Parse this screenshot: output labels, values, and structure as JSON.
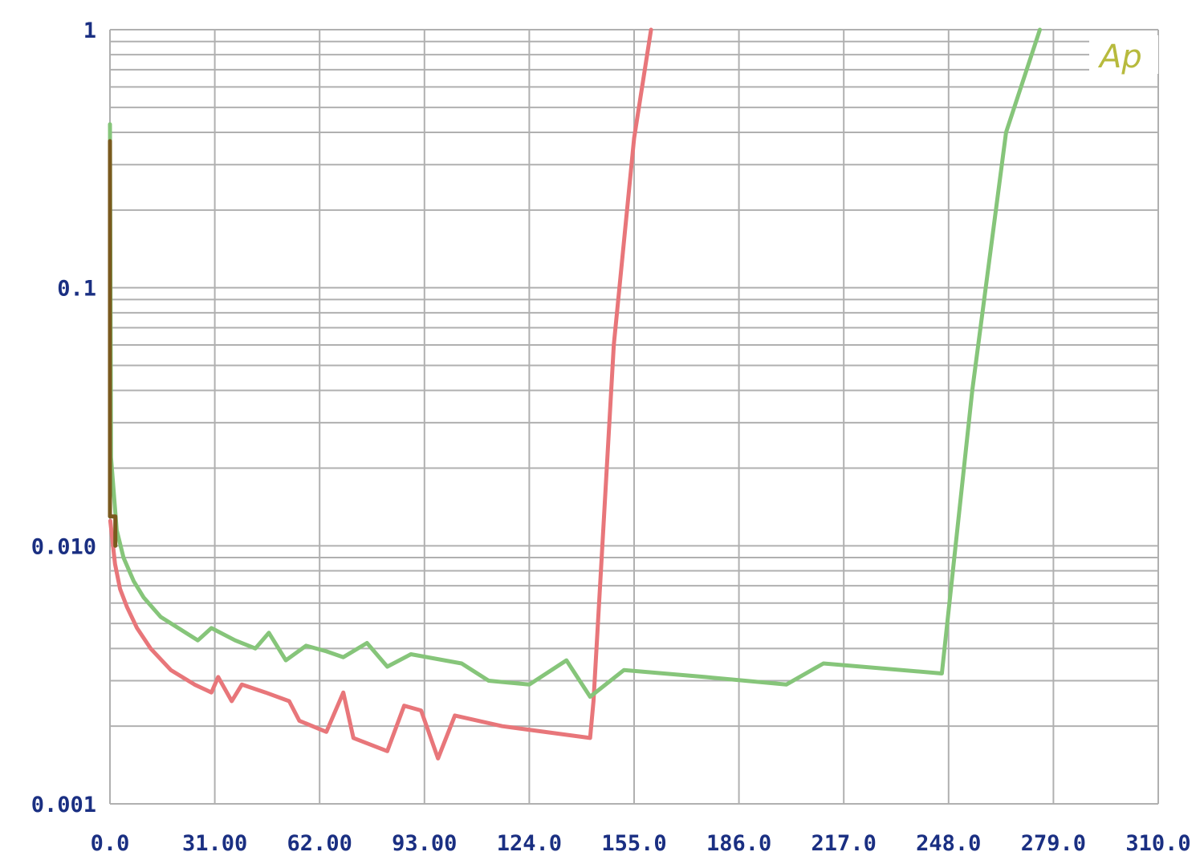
{
  "logo": {
    "text": "Ap"
  },
  "chart_data": {
    "type": "line",
    "title": "",
    "xlabel": "",
    "ylabel": "",
    "xlim": [
      0,
      310
    ],
    "ylim": [
      0.001,
      1
    ],
    "y_scale": "log",
    "grid": true,
    "x_ticks": [
      "0.0",
      "31.00",
      "62.00",
      "93.00",
      "124.0",
      "155.0",
      "186.0",
      "217.0",
      "248.0",
      "279.0",
      "310.0"
    ],
    "y_ticks": [
      {
        "value": 1,
        "label": "1"
      },
      {
        "value": 0.1,
        "label": "0.1"
      },
      {
        "value": 0.01,
        "label": "0.010"
      },
      {
        "value": 0.001,
        "label": "0.001"
      }
    ],
    "colors": {
      "red_series": "#e8767a",
      "green_series": "#86c57a",
      "dark_series": "#7a5a1e",
      "grid": "#b0b0b0",
      "axis_text": "#1a2f82",
      "logo": "#b7ba3d"
    },
    "series": [
      {
        "color": "#e8767a",
        "points": [
          [
            0.1,
            0.0125
          ],
          [
            1.5,
            0.0085
          ],
          [
            3,
            0.0068
          ],
          [
            5,
            0.0058
          ],
          [
            8,
            0.0048
          ],
          [
            12,
            0.004
          ],
          [
            18,
            0.0033
          ],
          [
            25,
            0.0029
          ],
          [
            30,
            0.0027
          ],
          [
            32,
            0.0031
          ],
          [
            36,
            0.0025
          ],
          [
            39,
            0.0029
          ],
          [
            46,
            0.0027
          ],
          [
            53,
            0.0025
          ],
          [
            56,
            0.0021
          ],
          [
            64,
            0.0019
          ],
          [
            69,
            0.0027
          ],
          [
            72,
            0.0018
          ],
          [
            82,
            0.0016
          ],
          [
            87,
            0.0024
          ],
          [
            92,
            0.0023
          ],
          [
            97,
            0.0015
          ],
          [
            102,
            0.0022
          ],
          [
            116,
            0.002
          ],
          [
            142,
            0.0018
          ],
          [
            143,
            0.0025
          ],
          [
            149,
            0.06
          ],
          [
            155,
            0.38
          ],
          [
            160,
            1.0
          ]
        ]
      },
      {
        "color": "#86c57a",
        "points": [
          [
            0,
            0.43
          ],
          [
            0.3,
            0.022
          ],
          [
            2,
            0.0115
          ],
          [
            4,
            0.009
          ],
          [
            7,
            0.0073
          ],
          [
            10,
            0.0063
          ],
          [
            15,
            0.0053
          ],
          [
            26,
            0.0043
          ],
          [
            30,
            0.0048
          ],
          [
            37,
            0.0043
          ],
          [
            43,
            0.004
          ],
          [
            47,
            0.0046
          ],
          [
            52,
            0.0036
          ],
          [
            58,
            0.0041
          ],
          [
            64,
            0.0039
          ],
          [
            69,
            0.0037
          ],
          [
            76,
            0.0042
          ],
          [
            82,
            0.0034
          ],
          [
            89,
            0.0038
          ],
          [
            104,
            0.0035
          ],
          [
            112,
            0.003
          ],
          [
            124,
            0.0029
          ],
          [
            135,
            0.0036
          ],
          [
            142,
            0.0026
          ],
          [
            152,
            0.0033
          ],
          [
            176,
            0.0031
          ],
          [
            200,
            0.0029
          ],
          [
            211,
            0.0035
          ],
          [
            246,
            0.0032
          ],
          [
            255,
            0.04
          ],
          [
            265,
            0.4
          ],
          [
            275,
            1.0
          ]
        ]
      },
      {
        "color": "#7a5a1e",
        "points": [
          [
            0,
            0.37
          ],
          [
            0,
            0.013
          ],
          [
            1.6,
            0.013
          ],
          [
            1.6,
            0.01
          ]
        ]
      }
    ]
  }
}
